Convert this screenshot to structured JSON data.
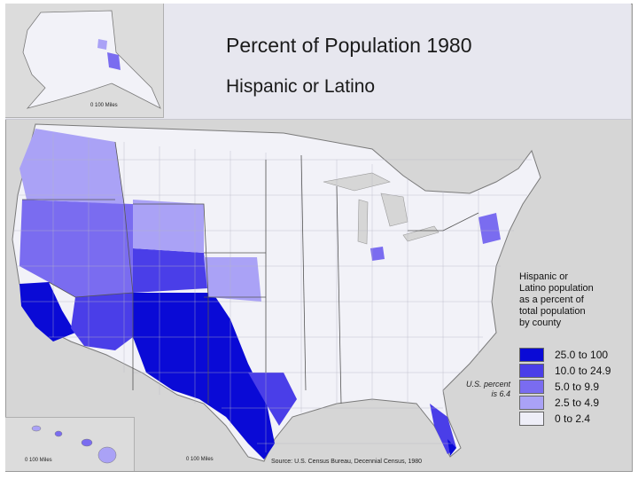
{
  "title": "Percent of Population 1980",
  "subtitle": "Hispanic or Latino",
  "legend": {
    "heading": [
      "Hispanic or",
      "Latino population",
      "as a percent of",
      "total population",
      "by county"
    ],
    "classes": [
      {
        "label": "25.0 to 100",
        "color": "#0a0ad6"
      },
      {
        "label": "10.0 to 24.9",
        "color": "#4a3ee8"
      },
      {
        "label": "5.0 to 9.9",
        "color": "#7a6cf0"
      },
      {
        "label": "2.5 to 4.9",
        "color": "#aaa2f6"
      },
      {
        "label": "0 to 2.4",
        "color": "#eeeef8"
      }
    ]
  },
  "us_percent": [
    "U.S. percent",
    "is 6.4"
  ],
  "source": "Source:  U.S. Census Bureau, Decennial Census, 1980",
  "scale_labels": {
    "alaska": "0    100 Miles",
    "hawaii": "0      100 Miles",
    "contiguous": "0    100 Miles"
  },
  "colors": {
    "land": "#f2f2f8",
    "water": "#d6d6d6",
    "border": "#7a7a7a"
  }
}
